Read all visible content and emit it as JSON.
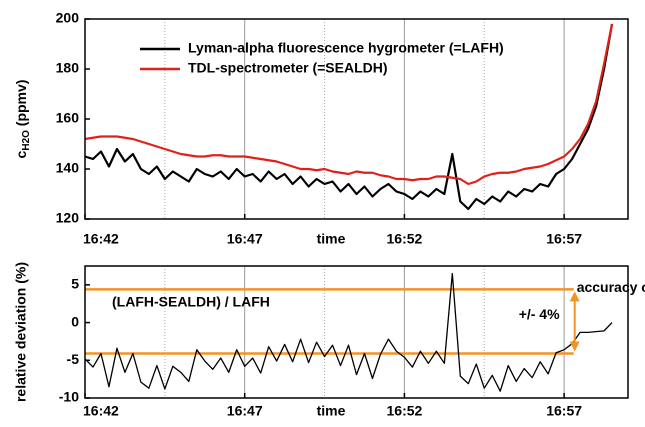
{
  "chart_data": [
    {
      "type": "line",
      "ylabel": "c",
      "ylabel_sub": "H2O",
      "ylabel_unit": "(ppmv)",
      "xlabel": "time",
      "xlim": [
        1002,
        1019
      ],
      "ylim": [
        120,
        200
      ],
      "xticks": [
        {
          "value": 1002,
          "label": "16:42"
        },
        {
          "value": 1007,
          "label": "16:47"
        },
        {
          "value": 1012,
          "label": "16:52"
        },
        {
          "value": 1017,
          "label": "16:57"
        }
      ],
      "xminorticks": [
        1004.5,
        1009.5,
        1014.5
      ],
      "yticks": [
        120,
        140,
        160,
        180,
        200
      ],
      "grid": true,
      "legend": "upper left",
      "x": [
        1002,
        1002.25,
        1002.5,
        1002.75,
        1003,
        1003.25,
        1003.5,
        1003.75,
        1004,
        1004.25,
        1004.5,
        1004.75,
        1005,
        1005.25,
        1005.5,
        1005.75,
        1006,
        1006.25,
        1006.5,
        1006.75,
        1007,
        1007.25,
        1007.5,
        1007.75,
        1008,
        1008.25,
        1008.5,
        1008.75,
        1009,
        1009.25,
        1009.5,
        1009.75,
        1010,
        1010.25,
        1010.5,
        1010.75,
        1011,
        1011.25,
        1011.5,
        1011.75,
        1012,
        1012.25,
        1012.5,
        1012.75,
        1013,
        1013.25,
        1013.5,
        1013.75,
        1014,
        1014.25,
        1014.5,
        1014.75,
        1015,
        1015.25,
        1015.5,
        1015.75,
        1016,
        1016.25,
        1016.5,
        1016.75,
        1017,
        1017.25,
        1017.5,
        1017.75,
        1018,
        1018.25,
        1018.5
      ],
      "series": [
        {
          "name": "Lyman-alpha fluorescence hygrometer (=LAFH)",
          "color": "#000000",
          "values": [
            145,
            144,
            147,
            141,
            148,
            143,
            146,
            140,
            138,
            141,
            136,
            139,
            137,
            135,
            140,
            138,
            137,
            139,
            136,
            140,
            137,
            138,
            135,
            139,
            136,
            138,
            134,
            137,
            133,
            136,
            134,
            135,
            131,
            134,
            130,
            133,
            129,
            132,
            134,
            131,
            130,
            128,
            131,
            129,
            132,
            130,
            146,
            127,
            124,
            128,
            126,
            129,
            127,
            131,
            129,
            132,
            131,
            134,
            133,
            138,
            140,
            144,
            150,
            156,
            165,
            180,
            198
          ]
        },
        {
          "name": "TDL-spectrometer (=SEALDH)",
          "color": "#e0201b",
          "values": [
            152,
            152.5,
            153,
            153,
            153,
            152.5,
            152,
            151,
            150,
            149,
            148,
            147,
            146,
            145.5,
            145,
            145,
            145.5,
            145.5,
            145,
            145,
            145,
            144.5,
            144,
            143.5,
            143,
            142,
            141,
            140,
            140,
            139.5,
            140,
            139,
            138.5,
            138,
            139,
            138.5,
            138.5,
            137.5,
            137,
            136,
            136,
            135.5,
            136,
            136,
            137,
            137,
            136.5,
            136,
            134,
            135,
            137,
            138,
            138.5,
            138.5,
            139,
            140,
            140.5,
            141,
            142,
            143.5,
            145,
            148,
            152,
            158,
            167,
            182,
            198
          ]
        }
      ]
    },
    {
      "type": "line",
      "ylabel": "relative deviation (%)",
      "xlabel": "time",
      "annotation": "(LAFH-SEALDH) / LAFH",
      "accuracy_label": "accuracy of the LAFH",
      "accuracy_range": "+/- 4%",
      "bands": {
        "upper": 4.4,
        "lower": -4.1,
        "x_end": 1017.3,
        "color": "#f39325"
      },
      "xlim": [
        1002,
        1019
      ],
      "ylim": [
        -10,
        7.5
      ],
      "xticks": [
        {
          "value": 1002,
          "label": "16:42"
        },
        {
          "value": 1007,
          "label": "16:47"
        },
        {
          "value": 1012,
          "label": "16:52"
        },
        {
          "value": 1017,
          "label": "16:57"
        }
      ],
      "xminorticks": [
        1004.5,
        1009.5,
        1014.5
      ],
      "yticks": [
        -10,
        -5,
        0,
        5
      ],
      "grid": true,
      "x": [
        1002,
        1002.25,
        1002.5,
        1002.75,
        1003,
        1003.25,
        1003.5,
        1003.75,
        1004,
        1004.25,
        1004.5,
        1004.75,
        1005,
        1005.25,
        1005.5,
        1005.75,
        1006,
        1006.25,
        1006.5,
        1006.75,
        1007,
        1007.25,
        1007.5,
        1007.75,
        1008,
        1008.25,
        1008.5,
        1008.75,
        1009,
        1009.25,
        1009.5,
        1009.75,
        1010,
        1010.25,
        1010.5,
        1010.75,
        1011,
        1011.25,
        1011.5,
        1011.75,
        1012,
        1012.25,
        1012.5,
        1012.75,
        1013,
        1013.25,
        1013.5,
        1013.75,
        1014,
        1014.25,
        1014.5,
        1014.75,
        1015,
        1015.25,
        1015.5,
        1015.75,
        1016,
        1016.25,
        1016.5,
        1016.75,
        1017,
        1017.25,
        1017.5,
        1017.75,
        1018,
        1018.25,
        1018.5
      ],
      "series": [
        {
          "color": "#000000",
          "values": [
            -4.8,
            -5.9,
            -4.1,
            -8.5,
            -3.4,
            -6.6,
            -4.1,
            -7.9,
            -8.7,
            -5.7,
            -8.8,
            -5.8,
            -6.6,
            -7.8,
            -3.6,
            -5.1,
            -6.2,
            -4.7,
            -6.6,
            -3.6,
            -5.8,
            -4.7,
            -6.7,
            -3.2,
            -5.1,
            -2.9,
            -5.2,
            -2.2,
            -5.3,
            -2.6,
            -4.5,
            -3.0,
            -5.7,
            -3.0,
            -6.9,
            -4.1,
            -7.4,
            -4.2,
            -2.2,
            -3.8,
            -4.6,
            -5.9,
            -3.8,
            -5.4,
            -3.8,
            -5.4,
            6.5,
            -7.1,
            -8.1,
            -5.5,
            -8.7,
            -7.0,
            -9.1,
            -5.7,
            -7.8,
            -6.1,
            -7.3,
            -5.2,
            -6.8,
            -4.0,
            -3.6,
            -2.8,
            -1.3,
            -1.3,
            -1.2,
            -1.1,
            0
          ]
        }
      ]
    }
  ]
}
